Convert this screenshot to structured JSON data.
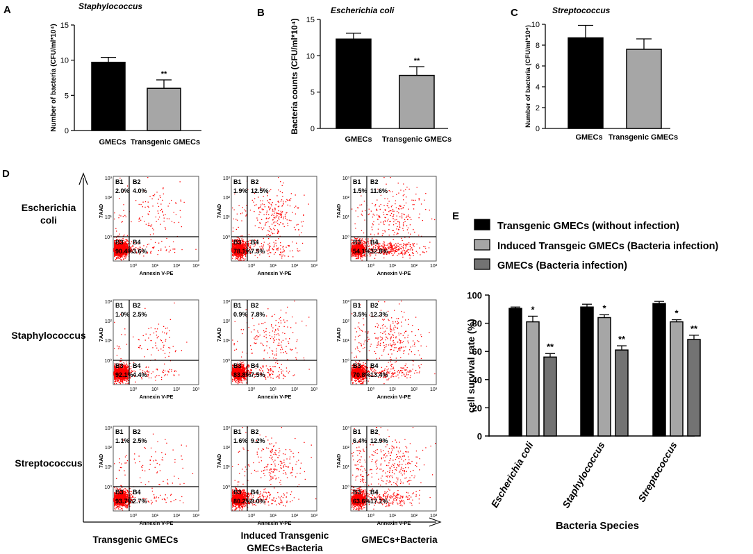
{
  "chart_data": [
    {
      "panel": "A",
      "type": "bar",
      "title": "Staphylococcus",
      "ylabel": "Number of bacteria (CFU/ml*10⁴)",
      "xlabel": "",
      "ylim": [
        0,
        15
      ],
      "yticks": [
        "0",
        "5",
        "10",
        "15"
      ],
      "categories": [
        "GMECs",
        "Transgenic GMECs"
      ],
      "values": [
        9.7,
        6.0
      ],
      "errors": [
        0.7,
        1.2
      ],
      "bar_colors": [
        "#000000",
        "#a6a6a6"
      ],
      "significance": [
        "",
        "**"
      ]
    },
    {
      "panel": "B",
      "type": "bar",
      "title": "Escherichia coli",
      "ylabel": "Bacteria counts (CFU/ml*10⁴)",
      "xlabel": "",
      "ylim": [
        0,
        15
      ],
      "yticks": [
        "0",
        "5",
        "10",
        "15"
      ],
      "categories": [
        "GMECs",
        "Transgenic GMECs"
      ],
      "values": [
        12.3,
        7.3
      ],
      "errors": [
        0.8,
        1.2
      ],
      "bar_colors": [
        "#000000",
        "#a6a6a6"
      ],
      "significance": [
        "",
        "**"
      ]
    },
    {
      "panel": "C",
      "type": "bar",
      "title": "Streptococcus",
      "ylabel": "Number of bacteria (CFU/ml*10⁴)",
      "xlabel": "",
      "ylim": [
        0,
        10
      ],
      "yticks": [
        "0",
        "2",
        "4",
        "6",
        "8",
        "10"
      ],
      "categories": [
        "GMECs",
        "Transgenic GMECs"
      ],
      "values": [
        8.7,
        7.6
      ],
      "errors": [
        1.2,
        1.0
      ],
      "bar_colors": [
        "#000000",
        "#a6a6a6"
      ],
      "significance": [
        "",
        ""
      ]
    },
    {
      "panel": "D",
      "type": "scatter",
      "title": "",
      "xlabel": "Annexin V-PE",
      "ylabel": "7AAD",
      "xticks": [
        "10⁰",
        "10¹",
        "10²",
        "10³"
      ],
      "yticks": [
        "10⁰",
        "10¹",
        "10²",
        "10³"
      ],
      "row_labels": [
        "Escherichia coli",
        "Staphylococcus",
        "Streptococcus"
      ],
      "col_labels": [
        "Transgenic GMECs",
        "Induced Transgenic GMECs+Bacteria",
        "GMECs+Bacteria"
      ],
      "plots": [
        [
          {
            "B1": "2.0%",
            "B2": "4.0%",
            "B3": "90.4%",
            "B4": "3.6%"
          },
          {
            "B1": "1.9%",
            "B2": "12.5%",
            "B3": "78.1%",
            "B4": "7.5%"
          },
          {
            "B1": "1.5%",
            "B2": "11.6%",
            "B3": "54.1%",
            "B4": "32.8%"
          }
        ],
        [
          {
            "B1": "1.0%",
            "B2": "2.5%",
            "B3": "92.1%",
            "B4": "4.4%"
          },
          {
            "B1": "0.9%",
            "B2": "7.8%",
            "B3": "83.8%",
            "B4": "7.5%"
          },
          {
            "B1": "3.5%",
            "B2": "12.3%",
            "B3": "70.8%",
            "B4": "13.4%"
          }
        ],
        [
          {
            "B1": "1.1%",
            "B2": "2.5%",
            "B3": "93.7%",
            "B4": "2.7%"
          },
          {
            "B1": "1.6%",
            "B2": "9.2%",
            "B3": "80.2%",
            "B4": "9.0%"
          },
          {
            "B1": "6.4%",
            "B2": "12.9%",
            "B3": "63.6%",
            "B4": "17.1%"
          }
        ]
      ],
      "point_color": "#ff0000"
    },
    {
      "panel": "E",
      "type": "bar",
      "title": "",
      "xlabel": "Bacteria Species",
      "ylabel": "cell survival rate (%)",
      "ylim": [
        0,
        100
      ],
      "yticks": [
        "0",
        "20",
        "40",
        "60",
        "80",
        "100"
      ],
      "categories": [
        "Escherichia coli",
        "Staphylococcus",
        "Streptococcus"
      ],
      "series": [
        {
          "name": "Transgenic GMECs (without infection)",
          "color": "#000000",
          "values": [
            90.5,
            91.5,
            94
          ],
          "errors": [
            1,
            2,
            1.5
          ],
          "significance": [
            "",
            "",
            ""
          ]
        },
        {
          "name": "Induced Transgeic GMECs (Bacteria infection)",
          "color": "#a6a6a6",
          "values": [
            81,
            84,
            81
          ],
          "errors": [
            4,
            2,
            1.5
          ],
          "significance": [
            "*",
            "*",
            "*"
          ]
        },
        {
          "name": "GMECs (Bacteria infection)",
          "color": "#737373",
          "values": [
            56,
            61,
            68.5
          ],
          "errors": [
            2.5,
            3,
            3
          ],
          "significance": [
            "**",
            "**",
            "**"
          ]
        }
      ],
      "legend": "top"
    }
  ]
}
